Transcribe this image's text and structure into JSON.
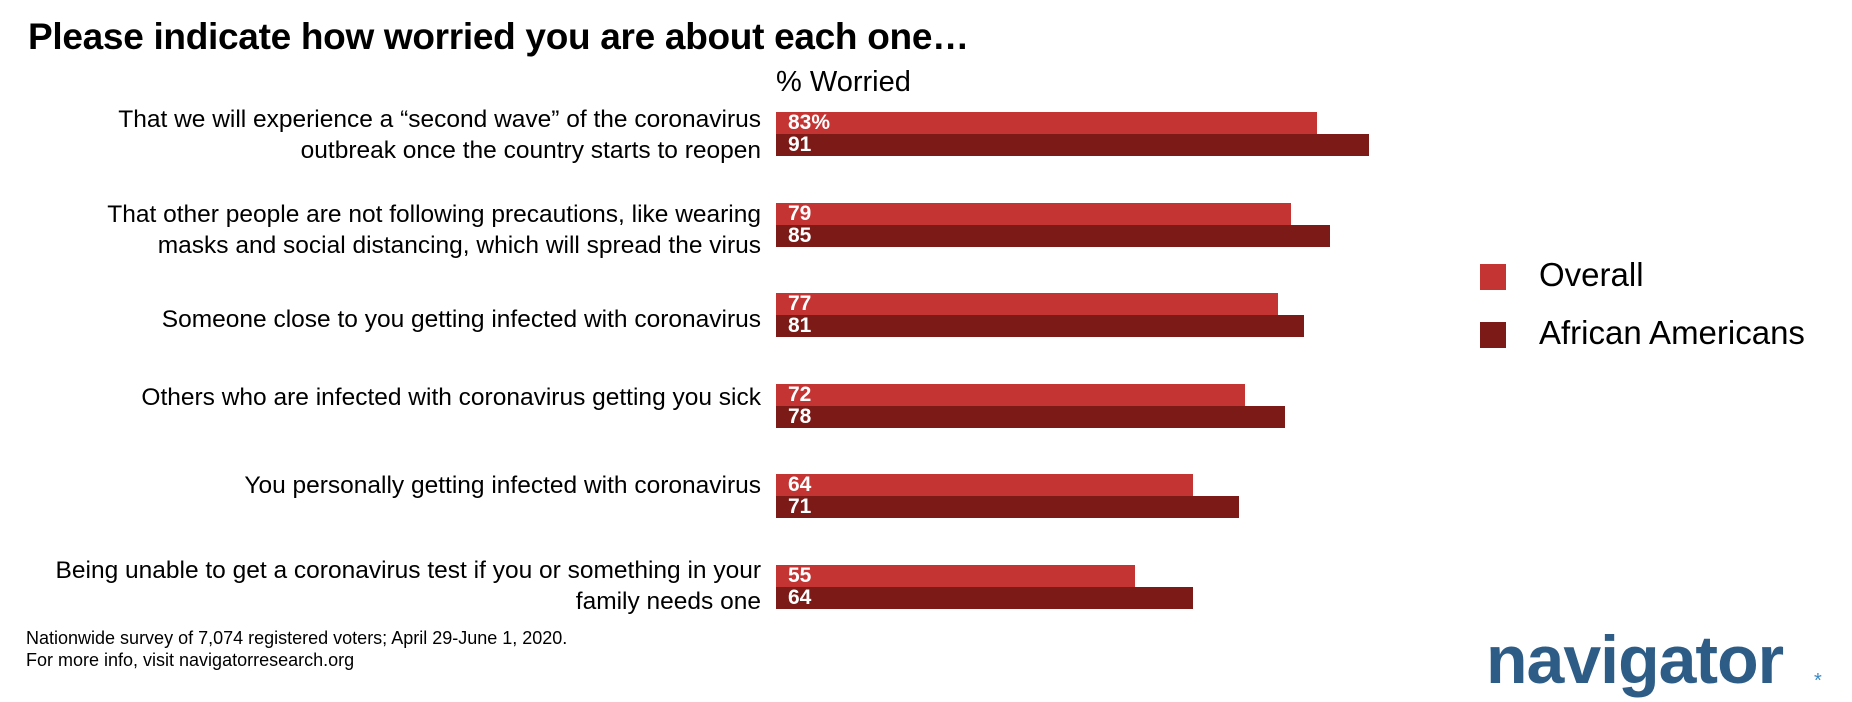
{
  "title": "Please indicate how worried you are about each one…",
  "subtitle": "% Worried",
  "colors": {
    "overall": "#c33433",
    "african_americans": "#7c1a17"
  },
  "legend": {
    "overall": "Overall",
    "african_americans": "African Americans"
  },
  "footnote": {
    "line1": "Nationwide survey of 7,074 registered voters; April 29-June 1, 2020.",
    "line2": "For more info, visit navigatorresearch.org"
  },
  "logo": {
    "text": "navigator",
    "mark": "*"
  },
  "chart_data": {
    "type": "bar",
    "orientation": "horizontal",
    "title": "Please indicate how worried you are about each one…",
    "subtitle": "% Worried",
    "categories": [
      [
        "That we will experience a “second wave” of the coronavirus",
        "outbreak once the country starts to reopen"
      ],
      [
        "That other people are not following precautions, like wearing",
        "masks and social distancing, which will spread the virus"
      ],
      [
        "Someone close to you getting infected with coronavirus"
      ],
      [
        "Others who are infected with coronavirus getting you sick"
      ],
      [
        "You personally getting infected with coronavirus"
      ],
      [
        "Being unable to get a coronavirus test if you or something in your",
        "family needs one"
      ]
    ],
    "series": [
      {
        "name": "Overall",
        "values": [
          83,
          79,
          77,
          72,
          64,
          55
        ],
        "labels": [
          "83%",
          "79",
          "77",
          "72",
          "64",
          "55"
        ]
      },
      {
        "name": "African Americans",
        "values": [
          91,
          85,
          81,
          78,
          71,
          64
        ],
        "labels": [
          "91",
          "85",
          "81",
          "78",
          "71",
          "64"
        ]
      }
    ],
    "xlim": [
      0,
      100
    ],
    "legend": "right",
    "grid": false
  }
}
